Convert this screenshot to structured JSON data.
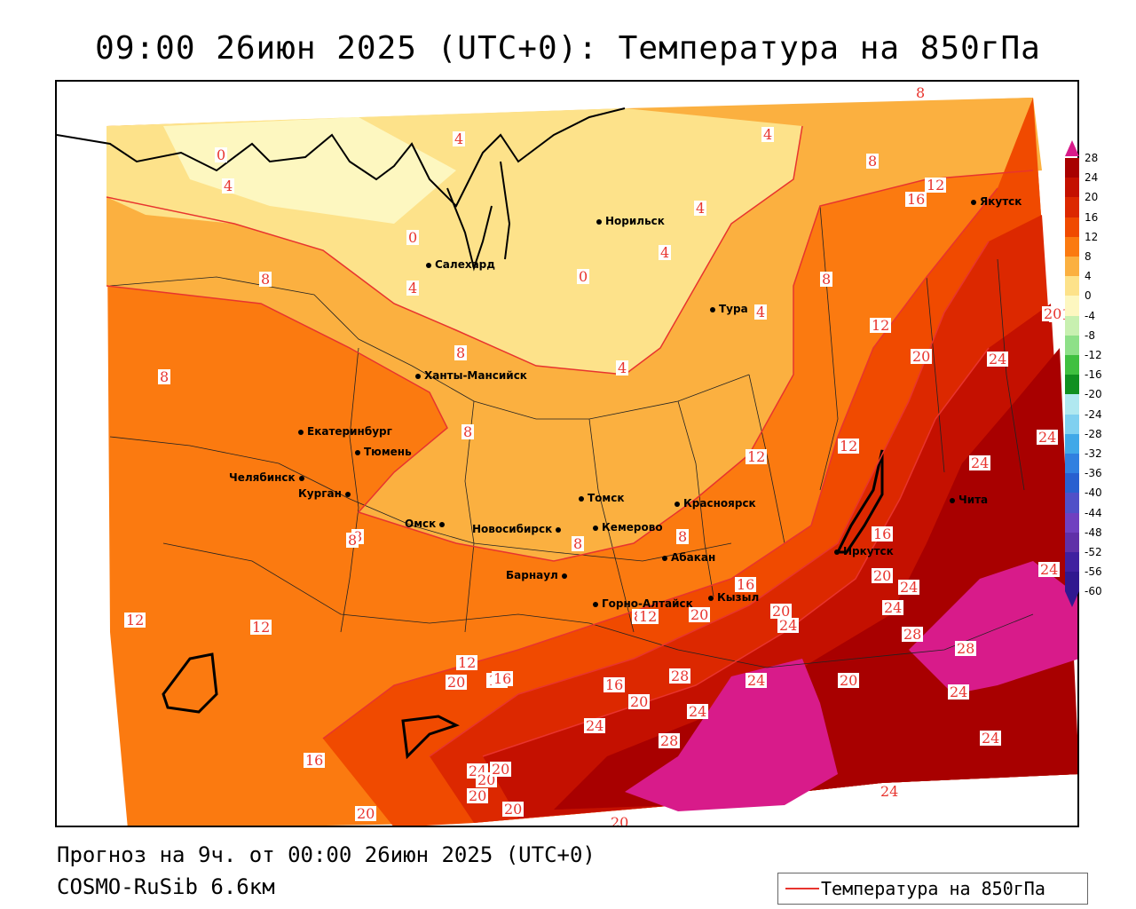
{
  "title": "09:00 26июн 2025 (UTC+0): Температура на 850гПа",
  "footer": {
    "forecast": "Прогноз на 9ч. от 00:00 26июн 2025 (UTC+0)",
    "model": "COSMO-RuSib 6.6км"
  },
  "legend": {
    "label": "Температура на 850гПа",
    "color": "#e8342e"
  },
  "colorbar": {
    "ticks": [
      "28",
      "24",
      "20",
      "16",
      "12",
      "8",
      "4",
      "0",
      "-4",
      "-8",
      "-12",
      "-16",
      "-20",
      "-24",
      "-28",
      "-32",
      "-36",
      "-40",
      "-44",
      "-48",
      "-52",
      "-56",
      "-60"
    ],
    "colors": [
      "#d81b8a",
      "#a80000",
      "#c41000",
      "#dc2800",
      "#f04a00",
      "#fb7a10",
      "#fbb040",
      "#fde28a",
      "#fdf7c0",
      "#c8f0b0",
      "#8ee088",
      "#40c040",
      "#109020",
      "#b0e8f0",
      "#80d0f0",
      "#40a8e8",
      "#3080e0",
      "#2860d0",
      "#5050c8",
      "#7040c0",
      "#6030a8",
      "#4020a0",
      "#301890"
    ]
  },
  "cities": [
    {
      "name": "Якутск"
    },
    {
      "name": "Норильск"
    },
    {
      "name": "Салехард"
    },
    {
      "name": "Тура"
    },
    {
      "name": "Ханты-Мансийск"
    },
    {
      "name": "Екатеринбург"
    },
    {
      "name": "Тюмень"
    },
    {
      "name": "Челябинск"
    },
    {
      "name": "Курган"
    },
    {
      "name": "Омск"
    },
    {
      "name": "Новосибирск"
    },
    {
      "name": "Томск"
    },
    {
      "name": "Кемерово"
    },
    {
      "name": "Красноярск"
    },
    {
      "name": "Барнаул"
    },
    {
      "name": "Абакан"
    },
    {
      "name": "Горно-Алтайск"
    },
    {
      "name": "Кызыл"
    },
    {
      "name": "Иркутск"
    },
    {
      "name": "Чита"
    }
  ],
  "contour_labels": [
    "8",
    "4",
    "0",
    "4",
    "4",
    "8",
    "4",
    "4",
    "8",
    "16",
    "12",
    "0",
    "4",
    "0",
    "4",
    "8",
    "4",
    "8",
    "12",
    "20",
    "8",
    "24",
    "8",
    "20",
    "8",
    "24",
    "24",
    "12",
    "12",
    "8",
    "8",
    "12",
    "24",
    "16",
    "20",
    "24",
    "12",
    "8",
    "8",
    "16",
    "12",
    "20",
    "24",
    "20",
    "20",
    "24",
    "28",
    "12",
    "16",
    "20",
    "28",
    "24",
    "20",
    "28",
    "20",
    "16",
    "16",
    "20",
    "24",
    "24",
    "28",
    "24",
    "20",
    "24",
    "24",
    "20",
    "20",
    "24",
    "20",
    "16",
    "20"
  ]
}
